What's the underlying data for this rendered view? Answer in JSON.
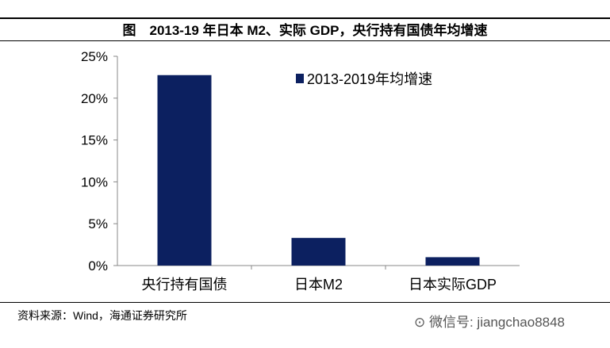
{
  "title": "图　2013-19 年日本 M2、实际 GDP，央行持有国债年均增速",
  "source": "资料来源：Wind，海通证券研究所",
  "watermark": "微信号: jiangchao8848",
  "chart_data": {
    "type": "bar",
    "categories": [
      "央行持有国债",
      "日本M2",
      "日本实际GDP"
    ],
    "series": [
      {
        "name": "2013-2019年均增速",
        "values": [
          22.75,
          3.3,
          1.0
        ],
        "color": "#0c2060"
      }
    ],
    "ylim": [
      0,
      25
    ],
    "yticks": [
      "0%",
      "5%",
      "10%",
      "15%",
      "20%",
      "25%"
    ],
    "grid": false,
    "legend": "top-right"
  }
}
